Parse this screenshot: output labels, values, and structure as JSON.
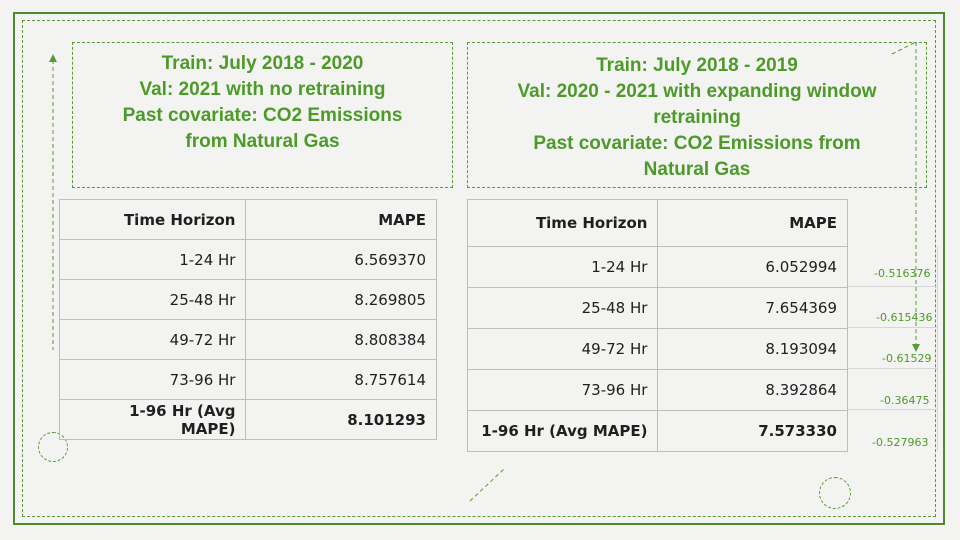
{
  "left_panel": {
    "title_lines": [
      "Train: July 2018 - 2020",
      "Val: 2021 with no retraining",
      "Past covariate: CO2 Emissions",
      "from Natural Gas"
    ],
    "table": {
      "headers": [
        "Time Horizon",
        "MAPE"
      ],
      "rows": [
        [
          "1-24 Hr",
          "6.569370"
        ],
        [
          "25-48 Hr",
          "8.269805"
        ],
        [
          "49-72 Hr",
          "8.808384"
        ],
        [
          "73-96 Hr",
          "8.757614"
        ]
      ],
      "avg_row": [
        "1-96 Hr (Avg MAPE)",
        "8.101293"
      ]
    }
  },
  "right_panel": {
    "title_lines": [
      "Train: July 2018 - 2019",
      "Val: 2020 - 2021 with expanding window",
      "retraining",
      "Past covariate: CO2 Emissions from",
      "Natural Gas"
    ],
    "table": {
      "headers": [
        "Time Horizon",
        "MAPE"
      ],
      "rows": [
        [
          "1-24 Hr",
          "6.052994"
        ],
        [
          "25-48 Hr",
          "7.654369"
        ],
        [
          "49-72 Hr",
          "8.193094"
        ],
        [
          "73-96 Hr",
          "8.392864"
        ]
      ],
      "avg_row": [
        "1-96 Hr (Avg MAPE)",
        "7.573330"
      ]
    },
    "differences": [
      "-0.516376",
      "-0.615436",
      "-0.61529",
      "-0.36475",
      "-0.527963"
    ]
  },
  "colors": {
    "accent_green": "#4d9a2a",
    "frame_green": "#4f8a2f",
    "background": "#f3f3f1"
  }
}
